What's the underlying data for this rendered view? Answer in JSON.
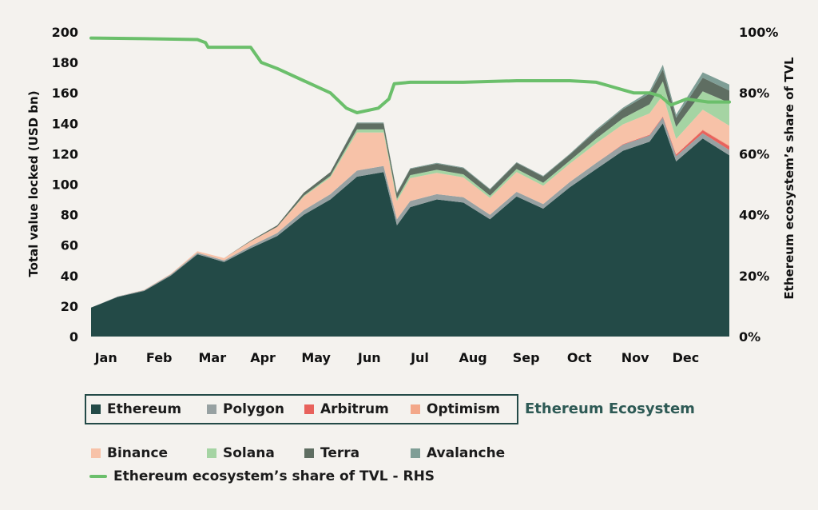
{
  "chart_data": {
    "type": "area",
    "stacked": true,
    "ylabel": "Total value locked (USD bn)",
    "y2label": "Ethereum ecosystem’s share of TVL",
    "ylim": [
      0,
      200
    ],
    "y2lim": [
      0,
      100
    ],
    "yticks": [
      0,
      20,
      40,
      60,
      80,
      100,
      120,
      140,
      160,
      180,
      200
    ],
    "y2ticks": [
      "0%",
      "20%",
      "40%",
      "60%",
      "80%",
      "100%"
    ],
    "month_labels": [
      "Jan",
      "Feb",
      "Mar",
      "Apr",
      "May",
      "Jun",
      "Jul",
      "Aug",
      "Sep",
      "Oct",
      "Nov",
      "Dec"
    ],
    "x": [
      0.0,
      0.5,
      1.0,
      1.5,
      2.0,
      2.5,
      3.0,
      3.5,
      4.0,
      4.5,
      5.0,
      5.5,
      5.75,
      6.0,
      6.5,
      7.0,
      7.5,
      8.0,
      8.5,
      9.0,
      9.5,
      10.0,
      10.5,
      10.75,
      11.0,
      11.5,
      12.0
    ],
    "series": [
      {
        "name": "Ethereum",
        "color": "#234a47",
        "values": [
          19,
          26,
          30,
          40,
          54,
          49,
          58,
          66,
          80,
          90,
          105,
          108,
          73,
          85,
          90,
          88,
          77,
          92,
          84,
          98,
          110,
          122,
          128,
          140,
          115,
          130,
          119
        ]
      },
      {
        "name": "Polygon",
        "color": "#97a1a2",
        "values": [
          0,
          0.3,
          0.5,
          0.8,
          1,
          1,
          1.5,
          2,
          3,
          3.5,
          4,
          4,
          4,
          4,
          3.5,
          3.5,
          3,
          3,
          3,
          3.5,
          4,
          4,
          4,
          4,
          3.5,
          3.5,
          3.5
        ]
      },
      {
        "name": "Arbitrum",
        "color": "#e8625c",
        "values": [
          0,
          0,
          0,
          0,
          0,
          0,
          0,
          0,
          0,
          0,
          0,
          0,
          0,
          0,
          0,
          0,
          0,
          0,
          0,
          0,
          0,
          0.3,
          0.5,
          0.5,
          1,
          2,
          2.5
        ]
      },
      {
        "name": "Optimism",
        "color": "#f3a789",
        "values": [
          0,
          0,
          0,
          0,
          0,
          0,
          0,
          0,
          0,
          0,
          0,
          0,
          0,
          0,
          0,
          0,
          0,
          0,
          0,
          0,
          0,
          0,
          0,
          0,
          0.2,
          0.5,
          0.5
        ]
      },
      {
        "name": "Binance",
        "color": "#f7c2a8",
        "values": [
          0,
          0,
          0.2,
          0.4,
          1,
          1.5,
          3,
          4,
          9,
          11,
          25,
          22,
          12,
          15,
          14,
          13,
          11,
          13,
          12,
          12,
          13,
          13,
          14,
          14,
          10,
          13,
          13
        ]
      },
      {
        "name": "Solana",
        "color": "#a5d4a3",
        "values": [
          0,
          0,
          0,
          0,
          0,
          0,
          0,
          0,
          0.5,
          1,
          2,
          2,
          1.5,
          2,
          2,
          2,
          1.5,
          2,
          2,
          2,
          3,
          4,
          6,
          9,
          8,
          12,
          15
        ]
      },
      {
        "name": "Terra",
        "color": "#5f6e62",
        "values": [
          0,
          0,
          0,
          0,
          0,
          0,
          0.5,
          1,
          2,
          2.5,
          4,
          4,
          3.5,
          4,
          4,
          4,
          4,
          4,
          4,
          4,
          5,
          6,
          7,
          8,
          6,
          9,
          8
        ]
      },
      {
        "name": "Avalanche",
        "color": "#7f9e96",
        "values": [
          0,
          0,
          0,
          0,
          0,
          0,
          0,
          0,
          0,
          0,
          0.5,
          0.5,
          0.5,
          0.5,
          0.5,
          0.5,
          0.5,
          0.5,
          0.5,
          0.5,
          1,
          1,
          1.5,
          3,
          2,
          3.5,
          4
        ]
      }
    ],
    "line_series": {
      "name": "Ethereum ecosystem’s share of TVL - RHS",
      "axis": "right",
      "color": "#6bbf6b",
      "x": [
        0.0,
        1.0,
        2.0,
        2.15,
        2.2,
        2.6,
        3.0,
        3.2,
        3.5,
        4.0,
        4.5,
        4.8,
        5.0,
        5.4,
        5.6,
        5.7,
        6.0,
        7.0,
        8.0,
        9.0,
        9.5,
        10.0,
        10.2,
        10.5,
        10.7,
        10.9,
        11.2,
        11.6,
        12.0
      ],
      "values": [
        98,
        97.8,
        97.5,
        96.5,
        95,
        95,
        95,
        90,
        88,
        84,
        80,
        75,
        73.5,
        75,
        78,
        83,
        83.5,
        83.5,
        84,
        84,
        83.5,
        81,
        80,
        80,
        79,
        76,
        78,
        77,
        77
      ]
    },
    "legend": {
      "row1": [
        "Ethereum",
        "Polygon",
        "Arbitrum",
        "Optimism"
      ],
      "group_label": "Ethereum Ecosystem",
      "row2": [
        "Binance",
        "Solana",
        "Terra",
        "Avalanche"
      ],
      "line_label": "Ethereum ecosystem’s share of TVL - RHS",
      "placement": "bottom"
    },
    "grid": false
  }
}
